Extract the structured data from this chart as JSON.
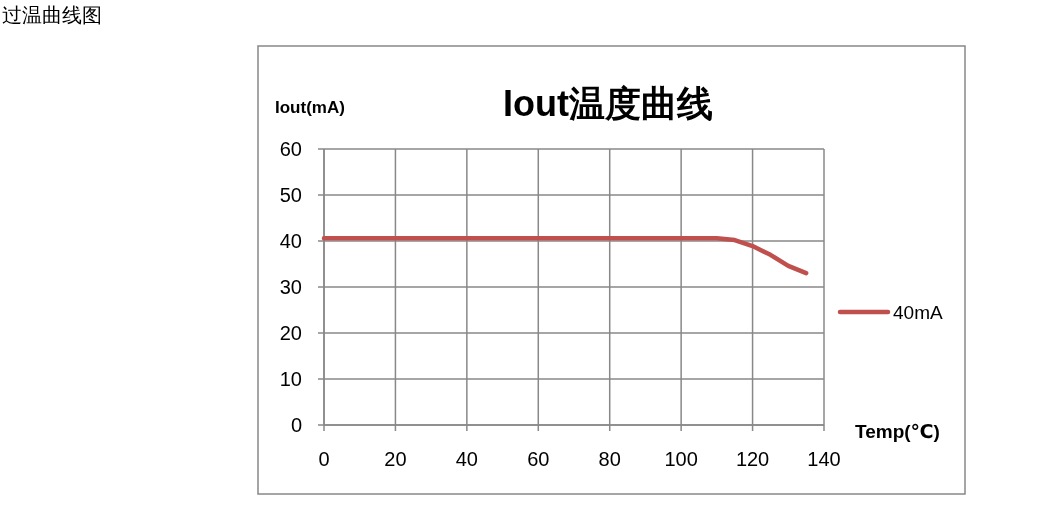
{
  "chart_data": {
    "type": "line",
    "title": "Iout温度曲线",
    "ylabel": "Iout(mA)",
    "xlabel": "Temp(℃)",
    "annotations": [
      "过温曲线图"
    ],
    "series": [
      {
        "name": "40mA",
        "color": "#c0504d",
        "x": [
          0,
          20,
          40,
          60,
          80,
          100,
          110,
          115,
          120,
          125,
          130,
          135
        ],
        "values": [
          40.6,
          40.6,
          40.6,
          40.6,
          40.6,
          40.6,
          40.6,
          40.2,
          38.9,
          37,
          34.6,
          33
        ]
      }
    ],
    "xlim": [
      0,
      140
    ],
    "xticks": [
      0,
      20,
      40,
      60,
      80,
      100,
      120,
      140
    ],
    "ylim": [
      0,
      60
    ],
    "yticks": [
      0,
      10,
      20,
      30,
      40,
      50,
      60
    ],
    "grid": true,
    "legend": "right",
    "marker": "none",
    "line_style": "solid"
  }
}
